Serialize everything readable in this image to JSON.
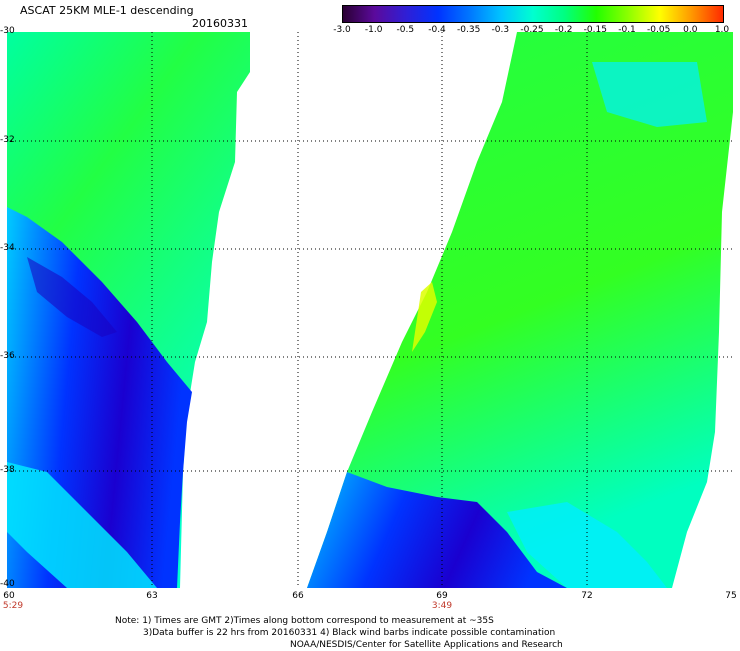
{
  "header": {
    "title": "ASCAT 25KM MLE-1 descending",
    "date": "20160331"
  },
  "colorbar": {
    "ticks": [
      "-3.0",
      "-1.0",
      "-0.5",
      "-0.4",
      "-0.35",
      "-0.3",
      "-0.25",
      "-0.2",
      "-0.15",
      "-0.1",
      "-0.05",
      "0.0",
      "1.0"
    ],
    "colors": [
      "#2a0033",
      "#5b0a9c",
      "#2f1fd6",
      "#0033ff",
      "#0077ff",
      "#00c4ff",
      "#00ffd0",
      "#00ff80",
      "#22ff00",
      "#8cff00",
      "#ffff00",
      "#ff9900",
      "#ff2a00"
    ]
  },
  "axes": {
    "y_labels": [
      "-30",
      "-32",
      "-34",
      "-36",
      "-38",
      "-40"
    ],
    "x_labels": [
      "60",
      "63",
      "66",
      "69",
      "72",
      "75"
    ],
    "times": [
      "5:29",
      "3:49"
    ]
  },
  "palette": {
    "deep_blue": "#1a00b8",
    "blue": "#0028ff",
    "light_blue": "#00aaff",
    "cyan": "#00f0ff",
    "aqua": "#00ffc0",
    "green": "#22ff44",
    "bright_green": "#33ff00",
    "yellow_green": "#aaff00",
    "yellow": "#ffff00"
  },
  "note": {
    "line1": "Note: 1) Times are GMT 2)Times along bottom correspond to measurement at ~35S",
    "line2": "3)Data buffer is 22 hrs from 20160331 4) Black wind barbs indicate possible contamination",
    "line3": "NOAA/NESDIS/Center for Satellite Applications and Research"
  }
}
